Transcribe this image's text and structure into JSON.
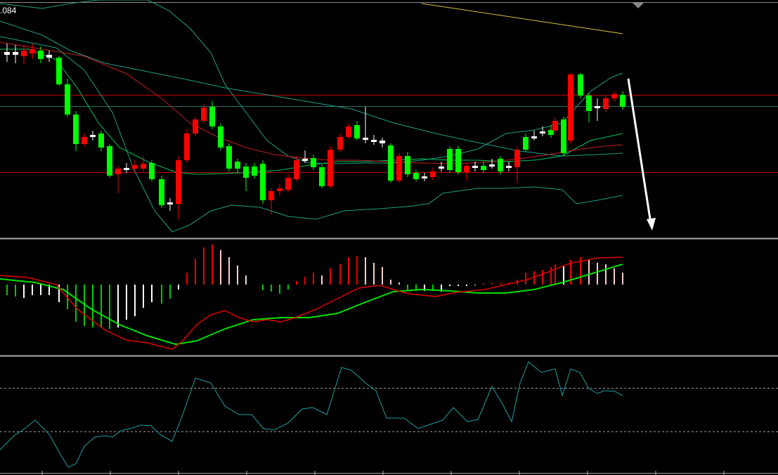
{
  "header": {
    "price_label": ".084"
  }
}
